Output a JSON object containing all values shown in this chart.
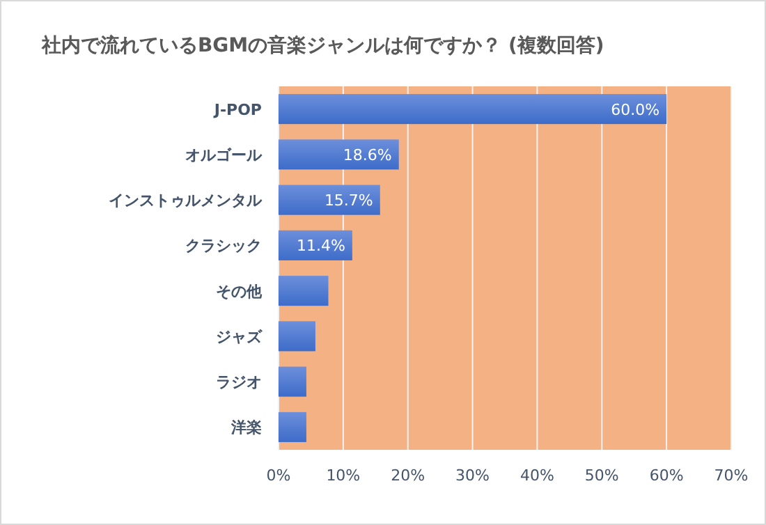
{
  "chart_data": {
    "type": "bar",
    "orientation": "horizontal",
    "title": "社内で流れているBGMの音楽ジャンルは何ですか？ (複数回答)",
    "categories": [
      "J-POP",
      "オルゴール",
      "インストゥルメンタル",
      "クラシック",
      "その他",
      "ジャズ",
      "ラジオ",
      "洋楽"
    ],
    "values": [
      60.0,
      18.6,
      15.7,
      11.4,
      7.7,
      5.7,
      4.3,
      4.3
    ],
    "value_labels": [
      "60.0%",
      "18.6%",
      "15.7%",
      "11.4%",
      null,
      null,
      null,
      null
    ],
    "color": "#3d6cc9",
    "xlim": [
      0,
      70
    ],
    "xticks": [
      {
        "value": 0,
        "label": "0%"
      },
      {
        "value": 10,
        "label": "10%"
      },
      {
        "value": 20,
        "label": "20%"
      },
      {
        "value": 30,
        "label": "30%"
      },
      {
        "value": 40,
        "label": "40%"
      },
      {
        "value": 50,
        "label": "50%"
      },
      {
        "value": 60,
        "label": "60%"
      },
      {
        "value": 70,
        "label": "70%"
      }
    ],
    "grid": "x"
  }
}
